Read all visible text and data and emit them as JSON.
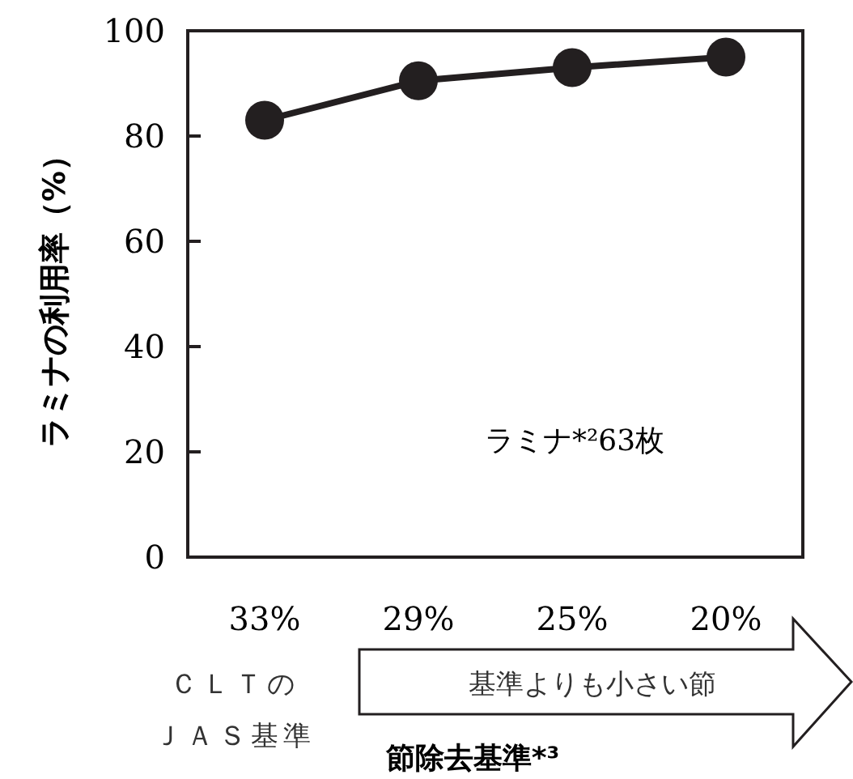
{
  "chart_data": {
    "type": "line",
    "categories": [
      "33%",
      "29%",
      "25%",
      "20%"
    ],
    "series": [
      {
        "color": "#231f20",
        "values": [
          83,
          90.5,
          93,
          95
        ]
      }
    ],
    "ylim": [
      0,
      100
    ],
    "yticks": [
      0,
      20,
      40,
      60,
      80,
      100
    ],
    "marker": "circle",
    "line_style": "solid",
    "grid": false,
    "ylabel": "ラミナの利用率（%）",
    "xlabel": "節除去基準*³",
    "annotations": [
      "ラミナ*²63枚",
      "基準よりも小さい節",
      "ＣＬＴの",
      "ＪＡＳ基準"
    ]
  }
}
